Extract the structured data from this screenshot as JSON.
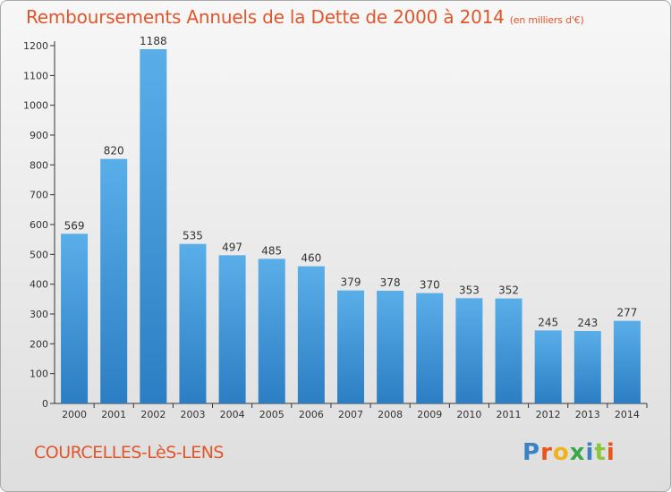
{
  "chart_data": {
    "type": "bar",
    "title": "Remboursements Annuels de la Dette de 2000 à 2014",
    "unit": "(en milliers d'€)",
    "categories": [
      "2000",
      "2001",
      "2002",
      "2003",
      "2004",
      "2005",
      "2006",
      "2007",
      "2008",
      "2009",
      "2010",
      "2011",
      "2012",
      "2013",
      "2014"
    ],
    "values": [
      569,
      820,
      1188,
      535,
      497,
      485,
      460,
      379,
      378,
      370,
      353,
      352,
      245,
      243,
      277
    ],
    "ylim": [
      0,
      1200
    ],
    "yticks": [
      0,
      100,
      200,
      300,
      400,
      500,
      600,
      700,
      800,
      900,
      1000,
      1100,
      1200
    ],
    "grid": false,
    "colors": {
      "bar_top": "#5aaee8",
      "bar_bottom": "#2b7ec3",
      "title": "#e0562b",
      "axis": "#333333"
    }
  },
  "footer": {
    "commune": "COURCELLES-LèS-LENS"
  },
  "logo": {
    "letters": [
      "P",
      "r",
      "o",
      "x",
      "i",
      "t",
      "i"
    ],
    "colors": [
      "#3b82c4",
      "#e8561e",
      "#f2b21b",
      "#3aa84a",
      "#3b82c4",
      "#8cc63f",
      "#e8561e"
    ]
  }
}
